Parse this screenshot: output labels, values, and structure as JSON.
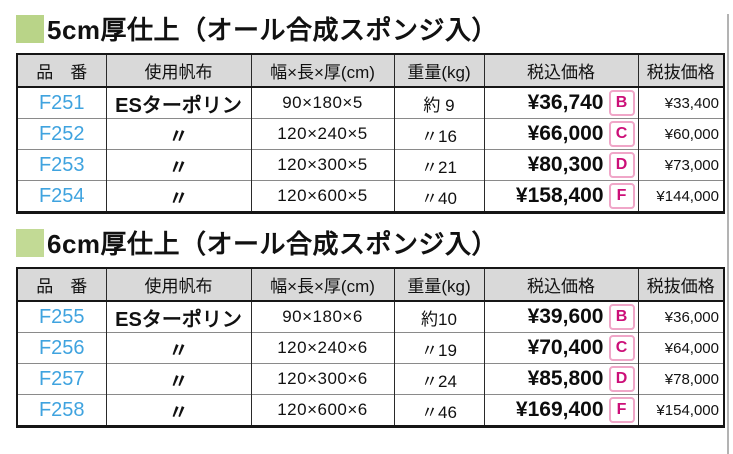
{
  "colors": {
    "title_bullet_5cm": "#b9d488",
    "title_bullet_6cm": "#c2da95",
    "header_bg": "#d9d9d9",
    "part_number_text": "#3fa3df",
    "badge_text": "#cc0f78",
    "badge_border": "#f0a6c8",
    "table_border": "#161616",
    "page_edge_line": "#b3b3b3"
  },
  "columns": {
    "part_no": "品　番",
    "fabric": "使用帆布",
    "size": "幅×長×厚(cm)",
    "weight": "重量(kg)",
    "price_incl": "税込価格",
    "price_excl": "税抜価格"
  },
  "sections": [
    {
      "title": "5cm厚仕上（オール合成スポンジ入）",
      "rows": [
        {
          "part_no": "F251",
          "fabric": "ESターポリン",
          "size": "90×180×5",
          "weight": "約 9",
          "price_incl": "¥36,740",
          "badge": "B",
          "price_excl": "¥33,400"
        },
        {
          "part_no": "F252",
          "fabric": "〃",
          "size": "120×240×5",
          "weight": "〃16",
          "price_incl": "¥66,000",
          "badge": "C",
          "price_excl": "¥60,000"
        },
        {
          "part_no": "F253",
          "fabric": "〃",
          "size": "120×300×5",
          "weight": "〃21",
          "price_incl": "¥80,300",
          "badge": "D",
          "price_excl": "¥73,000"
        },
        {
          "part_no": "F254",
          "fabric": "〃",
          "size": "120×600×5",
          "weight": "〃40",
          "price_incl": "¥158,400",
          "badge": "F",
          "price_excl": "¥144,000"
        }
      ]
    },
    {
      "title": "6cm厚仕上（オール合成スポンジ入）",
      "rows": [
        {
          "part_no": "F255",
          "fabric": "ESターポリン",
          "size": "90×180×6",
          "weight": "約10",
          "price_incl": "¥39,600",
          "badge": "B",
          "price_excl": "¥36,000"
        },
        {
          "part_no": "F256",
          "fabric": "〃",
          "size": "120×240×6",
          "weight": "〃19",
          "price_incl": "¥70,400",
          "badge": "C",
          "price_excl": "¥64,000"
        },
        {
          "part_no": "F257",
          "fabric": "〃",
          "size": "120×300×6",
          "weight": "〃24",
          "price_incl": "¥85,800",
          "badge": "D",
          "price_excl": "¥78,000"
        },
        {
          "part_no": "F258",
          "fabric": "〃",
          "size": "120×600×6",
          "weight": "〃46",
          "price_incl": "¥169,400",
          "badge": "F",
          "price_excl": "¥154,000"
        }
      ]
    }
  ]
}
